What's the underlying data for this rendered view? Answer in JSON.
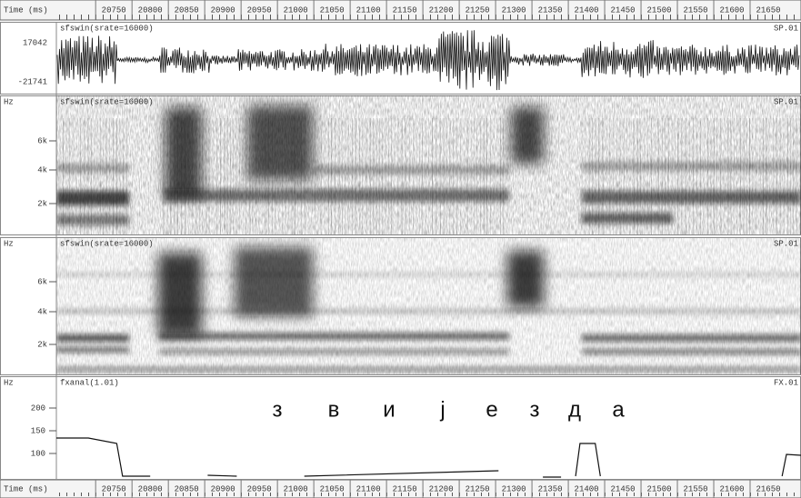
{
  "time_axis": {
    "label": "Time (ms)",
    "xlim": [
      20696,
      21720
    ],
    "ticks": [
      20750,
      20800,
      20850,
      20900,
      20950,
      21000,
      21050,
      21100,
      21150,
      21200,
      21250,
      21300,
      21350,
      21400,
      21450,
      21500,
      21550,
      21600,
      21650
    ]
  },
  "panels": [
    {
      "source": "sfswin(srate=16000)",
      "id": "SP.01",
      "yticks": [
        "17042",
        "-21741"
      ]
    },
    {
      "unit": "Hz",
      "source": "sfswin(srate=16000)",
      "id": "SP.01",
      "yticks": [
        "6k",
        "4k",
        "2k"
      ]
    },
    {
      "unit": "Hz",
      "source": "sfswin(srate=16000)",
      "id": "SP.01",
      "yticks": [
        "6k",
        "4k",
        "2k"
      ]
    }
  ],
  "f0_panel": {
    "unit": "Hz",
    "source": "fxanal(1.01)",
    "id": "FX.01",
    "ylim": [
      42,
      268
    ],
    "yticks": [
      200,
      150,
      100
    ],
    "annotations": [
      "з",
      "в",
      "и",
      "ј",
      "е",
      "з",
      "д",
      "а"
    ],
    "x": [
      20696,
      20740,
      20779,
      20787,
      20825,
      20860,
      20904,
      20944,
      20990,
      21037,
      21304,
      21330,
      21365,
      21390,
      21400,
      21410,
      21416,
      21437,
      21444,
      21600,
      21694,
      21700,
      21720
    ],
    "values": [
      134,
      134,
      122,
      50,
      50,
      null,
      52,
      50,
      null,
      50,
      62,
      null,
      48,
      48,
      null,
      50,
      122,
      122,
      50,
      null,
      50,
      98,
      96
    ]
  }
}
